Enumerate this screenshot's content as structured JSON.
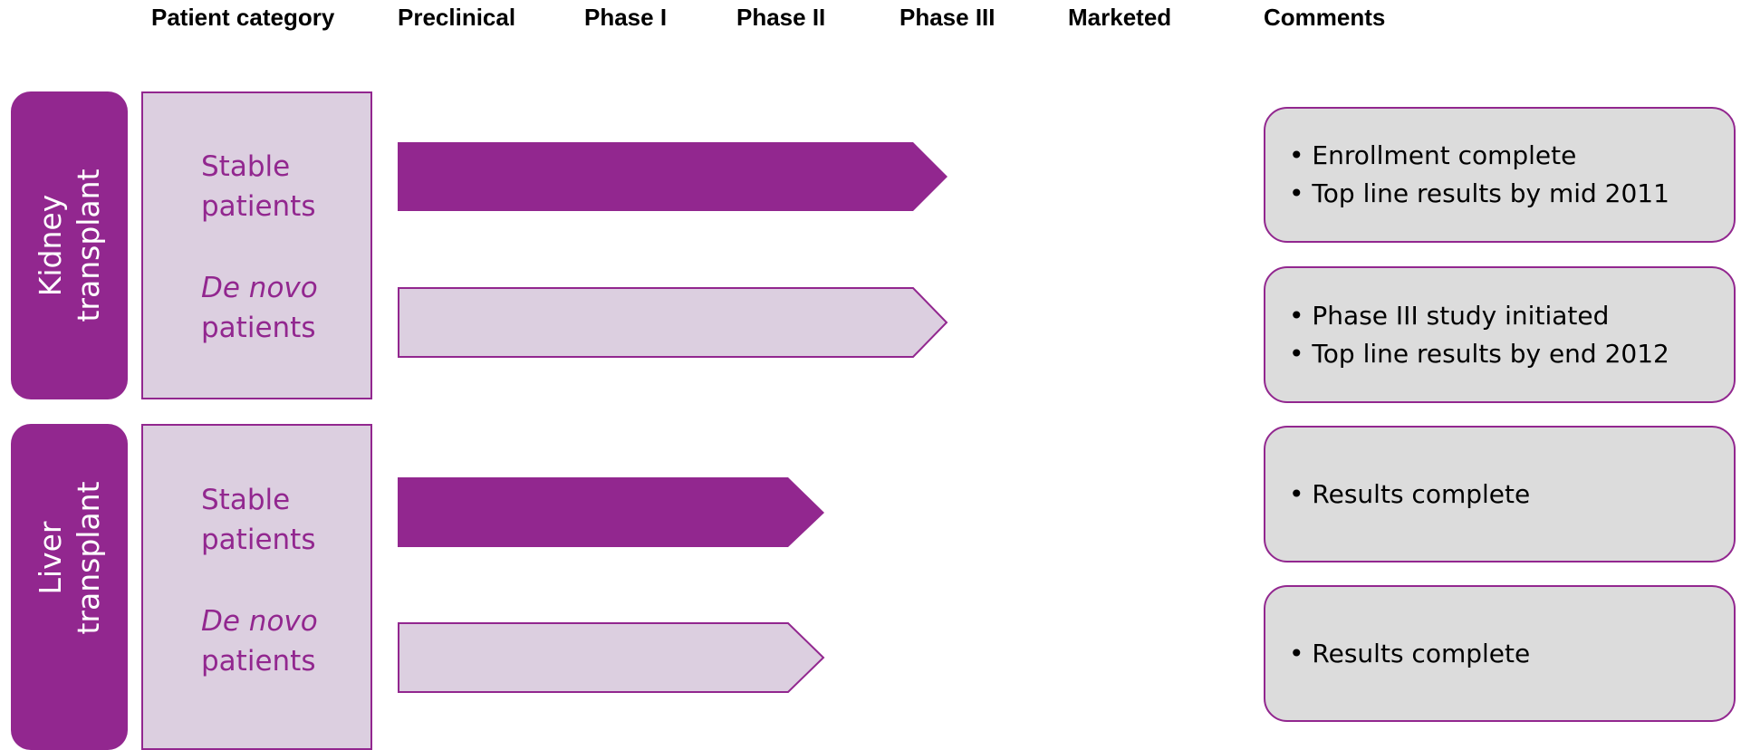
{
  "header": {
    "columns": [
      "Patient category",
      "Preclinical",
      "Phase I",
      "Phase II",
      "Phase III",
      "Marketed",
      "Comments"
    ]
  },
  "groups": [
    {
      "label": "Kidney transplant",
      "rows": [
        {
          "category": "Stable patients",
          "comments": [
            "Enrollment complete",
            "Top line results by mid 2011"
          ]
        },
        {
          "category_italic": "De novo",
          "category": "patients",
          "comments": [
            "Phase III study initiated",
            "Top line results by end 2012"
          ]
        }
      ]
    },
    {
      "label": "Liver transplant",
      "rows": [
        {
          "category": "Stable patients",
          "comments": [
            "Results complete"
          ]
        },
        {
          "category_italic": "De novo",
          "category": "patients",
          "comments": [
            "Results complete"
          ]
        }
      ]
    }
  ]
}
